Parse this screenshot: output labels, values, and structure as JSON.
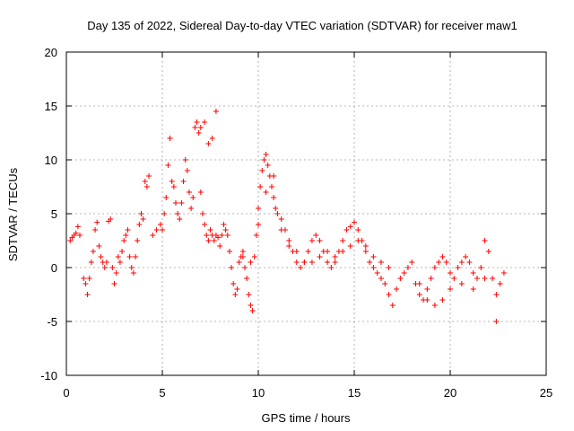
{
  "chart_data": {
    "type": "scatter",
    "title": "Day 135 of 2022, Sidereal Day-to-day VTEC variation (SDTVAR) for receiver maw1",
    "xlabel": "GPS time / hours",
    "ylabel": "SDTVAR / TECUs",
    "xlim": [
      0,
      25
    ],
    "ylim": [
      -10,
      20
    ],
    "xticks": [
      0,
      5,
      10,
      15,
      20,
      25
    ],
    "yticks": [
      -10,
      -5,
      0,
      5,
      10,
      15,
      20
    ],
    "grid": true,
    "marker": "+",
    "color": "#ff0000",
    "series": [
      {
        "name": "SDTVAR",
        "x": [
          0.2,
          0.3,
          0.4,
          0.5,
          0.6,
          0.7,
          0.9,
          1.0,
          1.1,
          1.2,
          1.3,
          1.4,
          1.5,
          1.6,
          1.7,
          1.8,
          1.9,
          2.0,
          2.1,
          2.2,
          2.3,
          2.4,
          2.5,
          2.6,
          2.7,
          2.8,
          2.9,
          3.0,
          3.1,
          3.2,
          3.3,
          3.4,
          3.5,
          3.6,
          3.7,
          3.8,
          3.9,
          4.0,
          4.1,
          4.2,
          4.3,
          4.5,
          4.7,
          4.9,
          5.0,
          5.1,
          5.2,
          5.3,
          5.4,
          5.5,
          5.6,
          5.7,
          5.8,
          5.9,
          6.0,
          6.1,
          6.2,
          6.3,
          6.4,
          6.5,
          6.6,
          6.7,
          6.8,
          6.9,
          7.0,
          7.1,
          7.2,
          7.3,
          7.4,
          7.5,
          7.6,
          7.7,
          7.8,
          7.9,
          8.0,
          8.1,
          8.2,
          8.3,
          8.4,
          8.5,
          8.6,
          8.7,
          8.8,
          8.9,
          9.0,
          9.1,
          9.2,
          9.3,
          9.4,
          9.5,
          9.6,
          9.7,
          9.8,
          9.9,
          10.0,
          10.1,
          10.2,
          10.3,
          10.4,
          10.5,
          10.6,
          10.7,
          10.8,
          10.9,
          11.0,
          11.2,
          11.4,
          11.6,
          11.8,
          12.0,
          12.2,
          12.4,
          12.6,
          12.8,
          13.0,
          13.2,
          13.4,
          13.6,
          13.8,
          14.0,
          14.2,
          14.4,
          14.6,
          14.8,
          15.0,
          15.2,
          15.4,
          15.6,
          15.8,
          16.0,
          16.2,
          16.4,
          16.6,
          16.8,
          17.0,
          17.2,
          17.4,
          17.6,
          17.8,
          18.0,
          18.2,
          18.4,
          18.6,
          18.8,
          19.0,
          19.2,
          19.4,
          19.6,
          19.8,
          20.0,
          20.2,
          20.4,
          20.6,
          20.8,
          21.0,
          21.2,
          21.4,
          21.6,
          21.8,
          22.0,
          22.2,
          22.4,
          22.6,
          22.8,
          11.2,
          11.6,
          12.0,
          12.4,
          12.8,
          13.2,
          13.6,
          14.0,
          14.4,
          14.8,
          15.2,
          15.6,
          16.0,
          16.4,
          16.8,
          7.0,
          7.2,
          7.4,
          7.6,
          7.8,
          9.2,
          9.6,
          10.0,
          10.4,
          10.8,
          18.4,
          18.8,
          19.2,
          19.6,
          20.0,
          20.6,
          21.2,
          21.8,
          22.4
        ],
        "y": [
          2.5,
          2.8,
          3.0,
          3.2,
          3.8,
          3.0,
          -1.0,
          -1.5,
          -2.5,
          -1.0,
          0.5,
          1.5,
          3.5,
          4.2,
          2.0,
          1.0,
          0.5,
          0.0,
          0.5,
          4.3,
          4.5,
          0.0,
          -1.5,
          -0.5,
          1.0,
          0.5,
          1.5,
          2.5,
          3.0,
          3.5,
          1.0,
          0.0,
          -0.5,
          1.0,
          2.5,
          4.0,
          5.0,
          4.5,
          8.0,
          7.5,
          8.5,
          3.0,
          3.5,
          4.0,
          3.5,
          5.0,
          6.5,
          9.5,
          12.0,
          8.0,
          7.5,
          6.0,
          5.0,
          4.5,
          6.0,
          8.0,
          10.0,
          9.0,
          7.0,
          5.5,
          6.5,
          13.0,
          13.5,
          12.5,
          7.0,
          5.0,
          4.0,
          3.0,
          2.5,
          3.5,
          3.0,
          2.5,
          3.0,
          2.8,
          2.0,
          3.0,
          4.0,
          3.5,
          3.0,
          1.5,
          0.0,
          -1.5,
          -2.5,
          -2.0,
          0.5,
          1.0,
          1.5,
          0.0,
          -1.0,
          -2.5,
          -3.5,
          -4.0,
          1.0,
          3.0,
          5.5,
          7.5,
          9.0,
          10.0,
          10.5,
          9.5,
          8.5,
          7.5,
          6.5,
          5.5,
          5.0,
          4.5,
          3.5,
          2.5,
          1.5,
          0.5,
          0.0,
          0.5,
          1.5,
          2.5,
          3.0,
          2.5,
          1.5,
          0.5,
          0.0,
          0.5,
          1.5,
          2.5,
          3.5,
          3.8,
          4.2,
          3.5,
          2.5,
          1.5,
          0.5,
          0.0,
          -0.5,
          -1.0,
          -1.5,
          -2.5,
          -3.5,
          -2.0,
          -1.0,
          -0.5,
          0.0,
          0.5,
          -1.5,
          -2.5,
          -3.0,
          -2.0,
          -1.0,
          0.0,
          0.5,
          1.0,
          0.5,
          -0.5,
          -1.0,
          0.0,
          0.5,
          1.0,
          0.5,
          -0.5,
          -1.0,
          0.0,
          2.5,
          1.5,
          -1.0,
          -2.5,
          -1.5,
          -0.5,
          3.5,
          2.0,
          1.5,
          0.5,
          0.5,
          1.0,
          1.5,
          1.0,
          1.5,
          2.0,
          2.5,
          2.0,
          1.0,
          0.5,
          0.0,
          13.0,
          13.5,
          11.5,
          12.0,
          14.5,
          1.0,
          0.5,
          4.0,
          7.0,
          8.5,
          -1.5,
          -3.0,
          -3.5,
          -3.0,
          -2.0,
          -1.5,
          -2.0,
          -1.0,
          -5.0
        ]
      }
    ]
  }
}
